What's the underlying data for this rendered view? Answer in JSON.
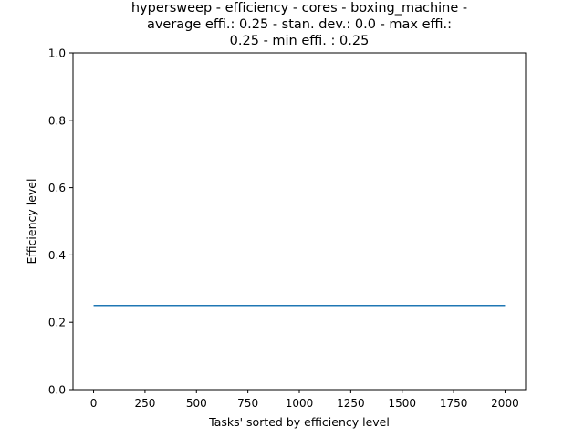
{
  "chart_data": {
    "type": "line",
    "title_lines": [
      "hypersweep - efficiency - cores - boxing_machine -",
      "average effi.: 0.25 - stan. dev.: 0.0 - max effi.:",
      "0.25 - min effi. : 0.25"
    ],
    "xlabel": "Tasks' sorted by efficiency level",
    "ylabel": "Efficiency level",
    "xlim": [
      -100,
      2100
    ],
    "ylim": [
      0.0,
      1.0
    ],
    "xticks": [
      0,
      250,
      500,
      750,
      1000,
      1250,
      1500,
      1750,
      2000
    ],
    "xtick_labels": [
      "0",
      "250",
      "500",
      "750",
      "1000",
      "1250",
      "1500",
      "1750",
      "2000"
    ],
    "yticks": [
      0.0,
      0.2,
      0.4,
      0.6,
      0.8,
      1.0
    ],
    "ytick_labels": [
      "0.0",
      "0.2",
      "0.4",
      "0.6",
      "0.8",
      "1.0"
    ],
    "grid": false,
    "series": [
      {
        "x": [
          0,
          2000
        ],
        "y": [
          0.25,
          0.25
        ],
        "color": "#1f77b4"
      }
    ]
  }
}
